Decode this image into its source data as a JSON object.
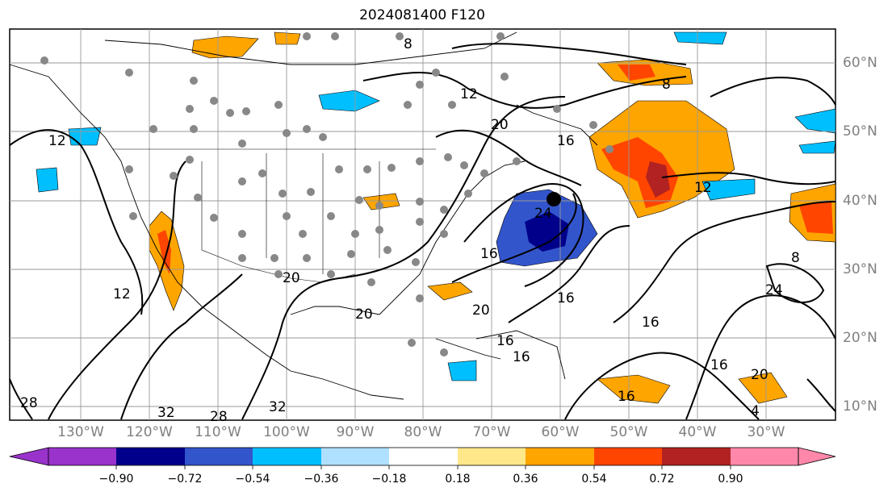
{
  "title": "2024081400 F120",
  "lon_labels": [
    "130°W",
    "120°W",
    "110°W",
    "100°W",
    "90°W",
    "80°W",
    "70°W",
    "60°W",
    "50°W",
    "40°W",
    "30°W"
  ],
  "lat_labels": [
    "60°N",
    "50°N",
    "40°N",
    "30°N",
    "20°N",
    "10°N"
  ],
  "colorbar": {
    "ticks": [
      "−0.90",
      "−0.72",
      "−0.54",
      "−0.36",
      "−0.18",
      "0.18",
      "0.36",
      "0.54",
      "0.72",
      "0.90"
    ],
    "colors": [
      "#9933cc",
      "#00008b",
      "#3355cc",
      "#00bfff",
      "#b0e0ff",
      "#ffffff",
      "#ffe88a",
      "#ffa500",
      "#ff4500",
      "#b22222",
      "#ff88aa"
    ]
  },
  "contour_labels": [
    "8",
    "12",
    "20",
    "16",
    "12",
    "8",
    "12",
    "16",
    "20",
    "16",
    "24",
    "16",
    "20",
    "16",
    "16",
    "8",
    "12",
    "16",
    "16",
    "20",
    "24",
    "28",
    "32",
    "28",
    "32",
    "4",
    "20"
  ],
  "storm_marker": "black-dot"
}
